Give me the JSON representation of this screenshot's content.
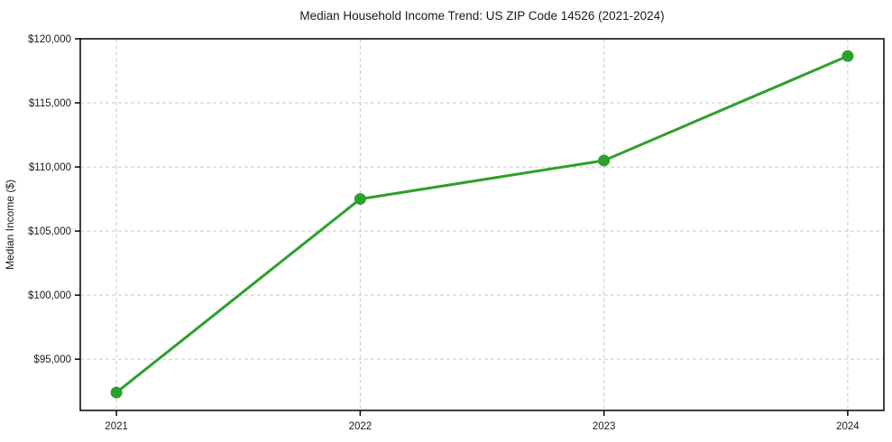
{
  "chart_data": {
    "type": "line",
    "title": "Median Household Income Trend: US ZIP Code 14526 (2021-2024)",
    "xlabel": "",
    "ylabel": "Median Income ($)",
    "categories": [
      "2021",
      "2022",
      "2023",
      "2024"
    ],
    "values": [
      92400,
      107500,
      110500,
      118650
    ],
    "ylim": [
      91000,
      120000
    ],
    "yticks": [
      {
        "value": 95000,
        "label": "$95,000"
      },
      {
        "value": 100000,
        "label": "$100,000"
      },
      {
        "value": 105000,
        "label": "$105,000"
      },
      {
        "value": 110000,
        "label": "$110,000"
      },
      {
        "value": 115000,
        "label": "$115,000"
      },
      {
        "value": 120000,
        "label": "$120,000"
      }
    ],
    "grid": "dashed-both-axes",
    "legend": "none",
    "marker": "circle",
    "colors": {
      "line": "#2ca02c",
      "grid": "#c9c9c9",
      "spine": "#000000",
      "text": "#1a1a1a",
      "background": "#ffffff"
    }
  }
}
